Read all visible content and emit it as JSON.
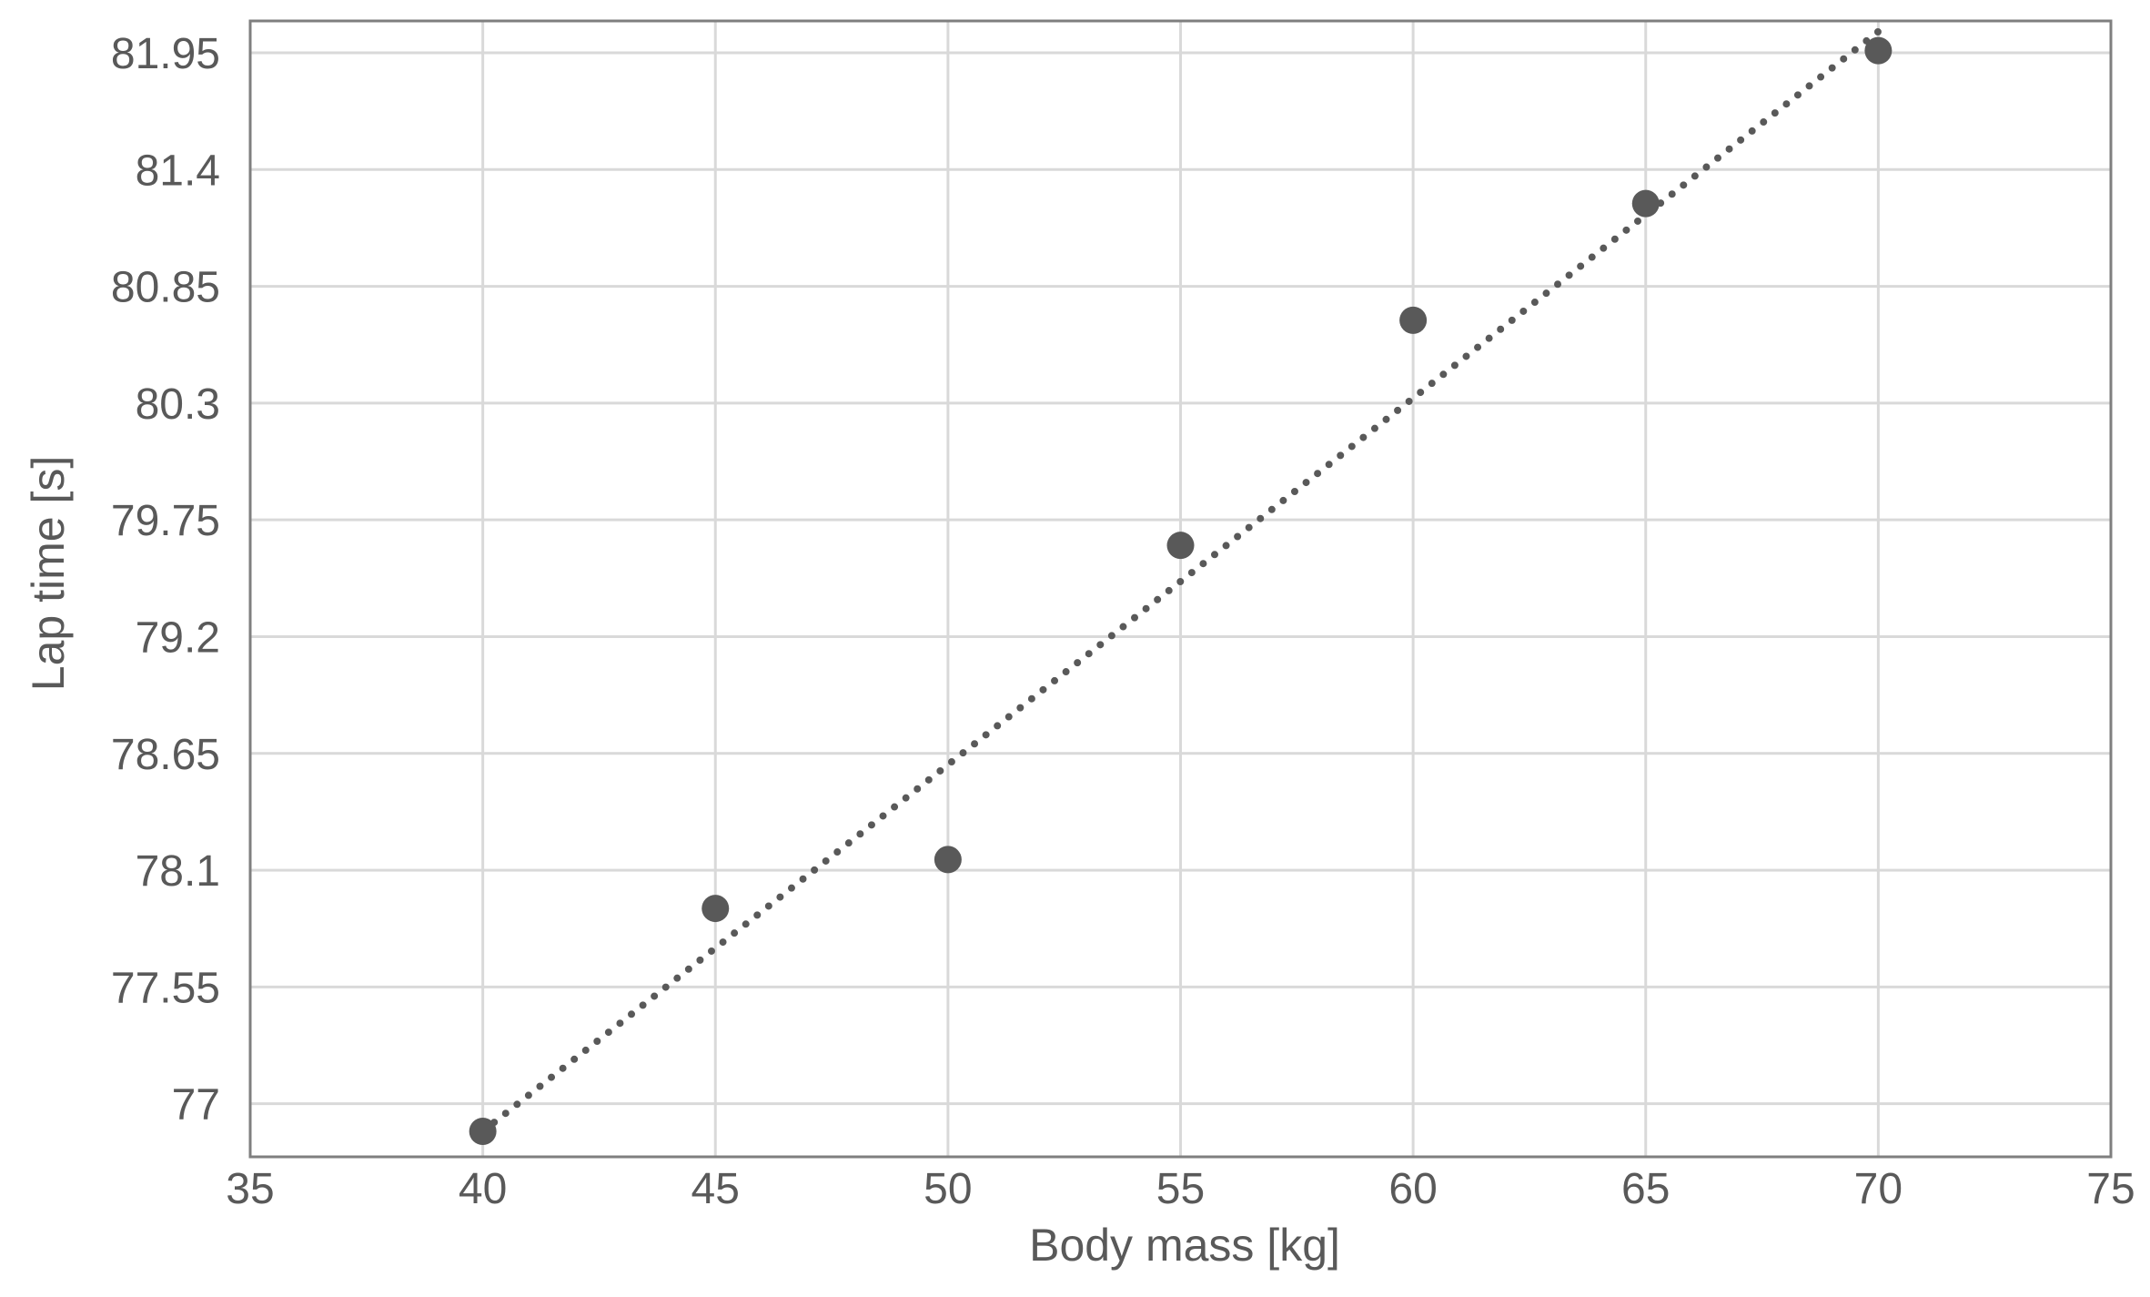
{
  "chart_data": {
    "type": "scatter",
    "title": "",
    "xlabel": "Body mass [kg]",
    "ylabel": "Lap time [s]",
    "xlim": [
      35,
      75
    ],
    "ylim": [
      76.75,
      82.1
    ],
    "x_ticks": [
      35,
      40,
      45,
      50,
      55,
      60,
      65,
      70,
      75
    ],
    "y_ticks": [
      77,
      77.55,
      78.1,
      78.65,
      79.2,
      79.75,
      80.3,
      80.85,
      81.4,
      81.95
    ],
    "x_tick_labels": [
      "35",
      "40",
      "45",
      "50",
      "55",
      "60",
      "65",
      "70",
      "75"
    ],
    "y_tick_labels": [
      "77",
      "77.55",
      "78.1",
      "78.65",
      "79.2",
      "79.75",
      "80.3",
      "80.85",
      "81.4",
      "81.95"
    ],
    "grid": true,
    "legend": "none",
    "series": [
      {
        "x": [
          40,
          45,
          50,
          55,
          60,
          65,
          70
        ],
        "y": [
          76.87,
          77.92,
          78.15,
          79.63,
          80.69,
          81.24,
          81.96
        ],
        "marker_color": "#595959"
      }
    ],
    "trendline": {
      "type": "linear",
      "style": "dotted",
      "color": "#595959",
      "x_range": [
        40,
        70
      ],
      "y_range": [
        76.87,
        82.05
      ]
    }
  }
}
